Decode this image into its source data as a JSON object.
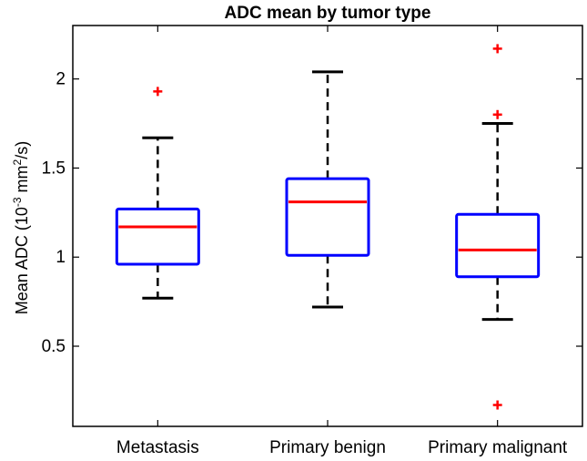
{
  "chart_data": {
    "type": "box",
    "title": "ADC mean by tumor type",
    "ylabel_main": "Mean ADC (10",
    "ylabel_exp1": "-3",
    "ylabel_mid": " mm",
    "ylabel_exp2": "2",
    "ylabel_end": "/s)",
    "xlabel": "",
    "ylim": [
      0.05,
      2.3
    ],
    "yticks": [
      0.5,
      1,
      1.5,
      2
    ],
    "ytick_labels": [
      "0.5",
      "1",
      "1.5",
      "2"
    ],
    "grid": false,
    "colors": {
      "box": "#0000ff",
      "median": "#ff0000",
      "whisker": "#000000",
      "outlier": "#ff0000"
    },
    "categories": [
      "Metastasis",
      "Primary benign",
      "Primary malignant"
    ],
    "boxes": [
      {
        "category": "Metastasis",
        "whisker_low": 0.77,
        "q1": 0.96,
        "median": 1.17,
        "q3": 1.27,
        "whisker_high": 1.67,
        "outliers": [
          1.93
        ]
      },
      {
        "category": "Primary benign",
        "whisker_low": 0.72,
        "q1": 1.01,
        "median": 1.31,
        "q3": 1.44,
        "whisker_high": 2.04,
        "outliers": []
      },
      {
        "category": "Primary malignant",
        "whisker_low": 0.65,
        "q1": 0.89,
        "median": 1.04,
        "q3": 1.24,
        "whisker_high": 1.75,
        "outliers": [
          2.17,
          1.8,
          0.17
        ]
      }
    ]
  }
}
